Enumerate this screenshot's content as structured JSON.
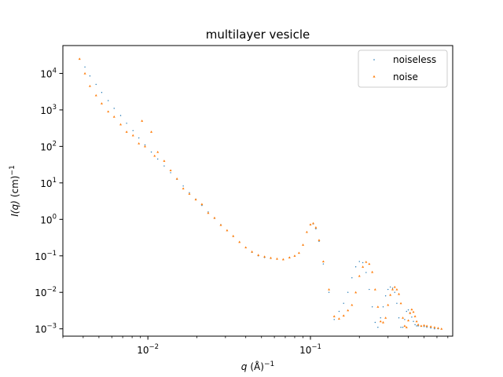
{
  "chart_data": {
    "type": "scatter",
    "title": "multilayer vesicle",
    "xlabel_var": "q",
    "xlabel_unit": "(Å)",
    "xlabel_exp": "−1",
    "ylabel_var": "I(q)",
    "ylabel_unit": "(cm)",
    "ylabel_exp": "−1",
    "x_scale": "log",
    "y_scale": "log",
    "xlim": [
      0.003,
      0.75
    ],
    "ylim": [
      0.00063,
      58000
    ],
    "grid": false,
    "legend_placement": "top-right",
    "x_ticks": [
      {
        "value": 0.01,
        "base": "10",
        "exp": "−2"
      },
      {
        "value": 0.1,
        "base": "10",
        "exp": "−1"
      }
    ],
    "y_ticks": [
      {
        "value": 0.001,
        "base": "10",
        "exp": "−3"
      },
      {
        "value": 0.01,
        "base": "10",
        "exp": "−2"
      },
      {
        "value": 0.1,
        "base": "10",
        "exp": "−1"
      },
      {
        "value": 1,
        "base": "10",
        "exp": "0"
      },
      {
        "value": 10,
        "base": "10",
        "exp": "1"
      },
      {
        "value": 100,
        "base": "10",
        "exp": "2"
      },
      {
        "value": 1000,
        "base": "10",
        "exp": "3"
      },
      {
        "value": 10000,
        "base": "10",
        "exp": "4"
      }
    ],
    "series": [
      {
        "name": "noiseless",
        "color": "#1f77b4",
        "marker": "point",
        "x": [
          0.0038,
          0.0041,
          0.0044,
          0.0048,
          0.0052,
          0.0057,
          0.0062,
          0.0068,
          0.0074,
          0.0081,
          0.0088,
          0.0096,
          0.0105,
          0.0115,
          0.0126,
          0.0138,
          0.0151,
          0.0165,
          0.018,
          0.0197,
          0.0215,
          0.0235,
          0.0257,
          0.0281,
          0.0307,
          0.0335,
          0.0366,
          0.04,
          0.0437,
          0.0478,
          0.0522,
          0.057,
          0.0623,
          0.068,
          0.0743,
          0.08,
          0.085,
          0.09,
          0.095,
          0.1,
          0.104,
          0.108,
          0.113,
          0.12,
          0.13,
          0.14,
          0.15,
          0.16,
          0.17,
          0.18,
          0.19,
          0.2,
          0.21,
          0.22,
          0.23,
          0.24,
          0.25,
          0.26,
          0.27,
          0.28,
          0.29,
          0.3,
          0.31,
          0.32,
          0.33,
          0.34,
          0.35,
          0.36,
          0.37,
          0.38,
          0.39,
          0.4,
          0.41,
          0.42,
          0.43,
          0.44,
          0.45,
          0.46,
          0.48,
          0.5,
          0.52,
          0.55,
          0.58,
          0.61,
          0.64
        ],
        "y": [
          25000,
          15000,
          8500,
          5000,
          3000,
          1800,
          1100,
          700,
          430,
          270,
          170,
          110,
          70,
          45,
          29,
          19,
          12.5,
          8.2,
          5.4,
          3.6,
          2.4,
          1.6,
          1.06,
          0.72,
          0.49,
          0.34,
          0.24,
          0.17,
          0.125,
          0.1,
          0.09,
          0.085,
          0.082,
          0.08,
          0.09,
          0.1,
          0.12,
          0.2,
          0.45,
          0.72,
          0.75,
          0.55,
          0.25,
          0.06,
          0.01,
          0.0018,
          0.003,
          0.005,
          0.01,
          0.025,
          0.05,
          0.07,
          0.065,
          0.035,
          0.012,
          0.004,
          0.0015,
          0.0011,
          0.002,
          0.004,
          0.008,
          0.012,
          0.014,
          0.013,
          0.01,
          0.005,
          0.002,
          0.0011,
          0.0011,
          0.0018,
          0.003,
          0.0033,
          0.0028,
          0.0021,
          0.0016,
          0.0013,
          0.0012,
          0.0012,
          0.0012,
          0.00115,
          0.0011,
          0.00105,
          0.001,
          0.001,
          0.001
        ]
      },
      {
        "name": "noise",
        "color": "#ff7f0e",
        "marker": "triangle",
        "x": [
          0.0038,
          0.0041,
          0.0044,
          0.0048,
          0.0052,
          0.0057,
          0.0062,
          0.0068,
          0.0074,
          0.0081,
          0.0088,
          0.0092,
          0.0096,
          0.0105,
          0.011,
          0.0115,
          0.0126,
          0.0138,
          0.0151,
          0.0165,
          0.018,
          0.0197,
          0.0215,
          0.0235,
          0.0257,
          0.0281,
          0.0307,
          0.0335,
          0.0366,
          0.04,
          0.0437,
          0.0478,
          0.0522,
          0.057,
          0.0623,
          0.068,
          0.0743,
          0.08,
          0.085,
          0.09,
          0.095,
          0.1,
          0.104,
          0.108,
          0.113,
          0.12,
          0.13,
          0.14,
          0.15,
          0.16,
          0.17,
          0.18,
          0.19,
          0.2,
          0.21,
          0.22,
          0.23,
          0.24,
          0.25,
          0.26,
          0.27,
          0.28,
          0.29,
          0.3,
          0.31,
          0.32,
          0.33,
          0.34,
          0.35,
          0.36,
          0.37,
          0.38,
          0.39,
          0.4,
          0.41,
          0.42,
          0.43,
          0.44,
          0.45,
          0.46,
          0.48,
          0.5,
          0.52,
          0.55,
          0.58,
          0.61,
          0.64
        ],
        "y": [
          25000,
          10000,
          4500,
          2500,
          1500,
          900,
          650,
          400,
          250,
          200,
          120,
          500,
          100,
          250,
          55,
          70,
          40,
          22,
          13,
          7,
          5,
          3.5,
          2.6,
          1.5,
          1.1,
          0.7,
          0.5,
          0.35,
          0.24,
          0.17,
          0.13,
          0.105,
          0.095,
          0.088,
          0.083,
          0.08,
          0.09,
          0.1,
          0.12,
          0.2,
          0.45,
          0.72,
          0.78,
          0.6,
          0.27,
          0.07,
          0.012,
          0.0022,
          0.0019,
          0.0023,
          0.0032,
          0.0045,
          0.01,
          0.028,
          0.05,
          0.068,
          0.06,
          0.036,
          0.012,
          0.004,
          0.0016,
          0.0015,
          0.002,
          0.0045,
          0.0085,
          0.012,
          0.014,
          0.012,
          0.009,
          0.005,
          0.002,
          0.0012,
          0.0011,
          0.0017,
          0.0027,
          0.0034,
          0.0029,
          0.0022,
          0.0016,
          0.0013,
          0.0012,
          0.00125,
          0.0012,
          0.00115,
          0.0011,
          0.00105,
          0.001
        ]
      }
    ]
  }
}
